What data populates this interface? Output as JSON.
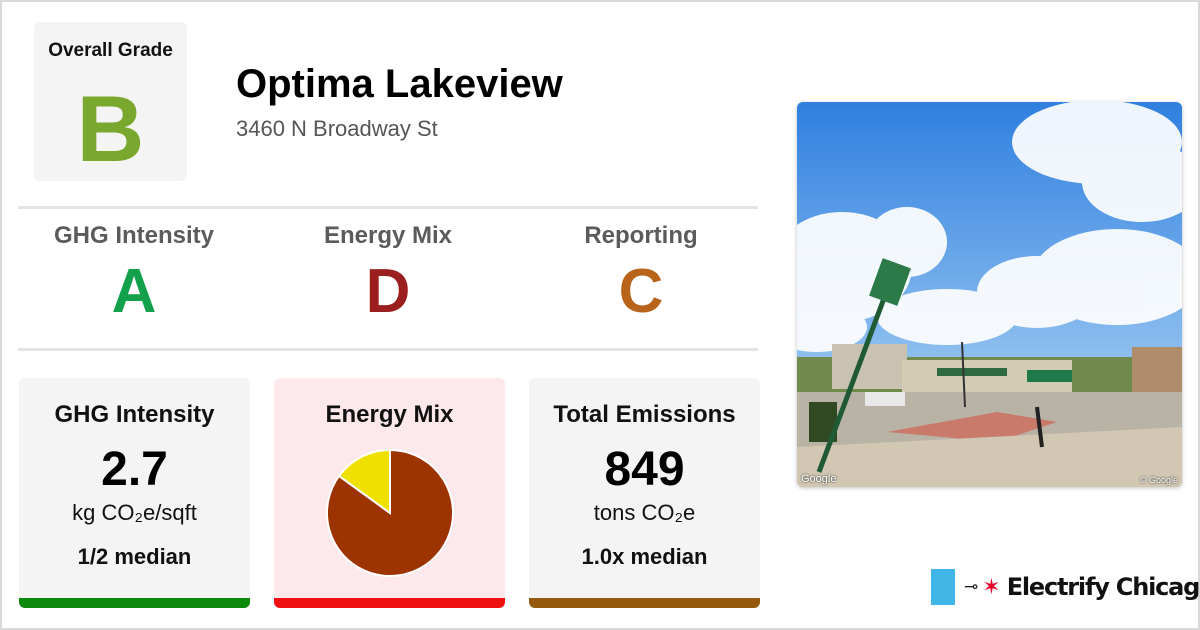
{
  "overall": {
    "label": "Overall Grade",
    "grade": "B",
    "color": "#7aa72e"
  },
  "building": {
    "name": "Optima Lakeview",
    "address": "3460 N Broadway St"
  },
  "sub_grades": [
    {
      "label": "GHG Intensity",
      "grade": "A",
      "color": "#13a04a"
    },
    {
      "label": "Energy Mix",
      "grade": "D",
      "color": "#9b1f1f"
    },
    {
      "label": "Reporting",
      "grade": "C",
      "color": "#b8651b"
    }
  ],
  "cards": {
    "ghg": {
      "title": "GHG Intensity",
      "value": "2.7",
      "unit": "kg CO₂e/sqft",
      "median": "1/2 median",
      "bg": "#f4f4f4",
      "bar": "#0b8a0b"
    },
    "mix": {
      "title": "Energy Mix",
      "bg": "#fde8ec",
      "bar": "#ee1111"
    },
    "total": {
      "title": "Total Emissions",
      "value": "849",
      "unit": "tons CO₂e",
      "median": "1.0x median",
      "bg": "#f4f4f4",
      "bar": "#94590c"
    }
  },
  "chart_data": {
    "type": "pie",
    "slices": [
      {
        "name": "",
        "value": 85,
        "color": "#9c3300"
      },
      {
        "name": "",
        "value": 15,
        "color": "#f0e000"
      }
    ]
  },
  "photo": {
    "alt": "Street view of building",
    "watermark": "Google",
    "watermark_right": "© Google"
  },
  "brand": {
    "name": "Electrify Chicago",
    "flag_color": "#41b6e6",
    "star_color": "#e4002b"
  }
}
